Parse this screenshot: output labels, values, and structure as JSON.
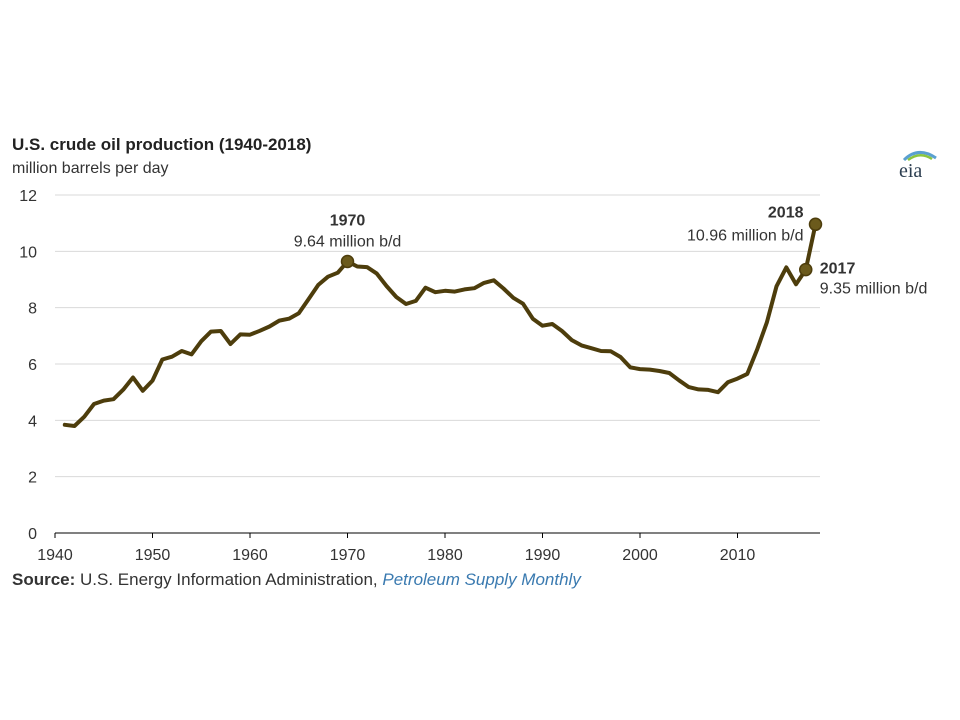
{
  "colors": {
    "line": "#4d3d0c",
    "marker": "#6b5a1c",
    "grid": "#d9d9d9",
    "publication_link": "#3a7ab0"
  },
  "logo": {
    "text": "eia",
    "icon": "eia-logo"
  },
  "source": {
    "label": "Source:",
    "text": " U.S. Energy Information Administration, ",
    "publication": "Petroleum Supply Monthly"
  },
  "chart_data": {
    "type": "line",
    "title": "U.S. crude oil production (1940-2018)",
    "subtitle": "million barrels per day",
    "xlabel": "",
    "ylabel": "",
    "xlim": [
      1940,
      2018
    ],
    "ylim": [
      0,
      12
    ],
    "x_ticks": [
      1940,
      1950,
      1960,
      1970,
      1980,
      1990,
      2000,
      2010
    ],
    "y_ticks": [
      0,
      2,
      4,
      6,
      8,
      10,
      12
    ],
    "grid": "horizontal",
    "series": [
      {
        "x": [
          1941,
          1942,
          1943,
          1944,
          1945,
          1946,
          1947,
          1948,
          1949,
          1950,
          1951,
          1952,
          1953,
          1954,
          1955,
          1956,
          1957,
          1958,
          1959,
          1960,
          1961,
          1962,
          1963,
          1964,
          1965,
          1966,
          1967,
          1968,
          1969,
          1970,
          1971,
          1972,
          1973,
          1974,
          1975,
          1976,
          1977,
          1978,
          1979,
          1980,
          1981,
          1982,
          1983,
          1984,
          1985,
          1986,
          1987,
          1988,
          1989,
          1990,
          1991,
          1992,
          1993,
          1994,
          1995,
          1996,
          1997,
          1998,
          1999,
          2000,
          2001,
          2002,
          2003,
          2004,
          2005,
          2006,
          2007,
          2008,
          2009,
          2010,
          2011,
          2012,
          2013,
          2014,
          2015,
          2016,
          2017,
          2018
        ],
        "values": [
          3.84,
          3.8,
          4.13,
          4.58,
          4.7,
          4.75,
          5.09,
          5.52,
          5.05,
          5.41,
          6.16,
          6.26,
          6.46,
          6.34,
          6.81,
          7.15,
          7.17,
          6.71,
          7.05,
          7.04,
          7.18,
          7.33,
          7.54,
          7.61,
          7.8,
          8.3,
          8.81,
          9.1,
          9.24,
          9.64,
          9.46,
          9.44,
          9.21,
          8.77,
          8.38,
          8.13,
          8.24,
          8.71,
          8.55,
          8.6,
          8.57,
          8.65,
          8.69,
          8.88,
          8.97,
          8.68,
          8.35,
          8.14,
          7.61,
          7.36,
          7.42,
          7.17,
          6.85,
          6.66,
          6.56,
          6.46,
          6.45,
          6.25,
          5.88,
          5.82,
          5.8,
          5.75,
          5.68,
          5.42,
          5.18,
          5.1,
          5.08,
          5.0,
          5.35,
          5.48,
          5.65,
          6.5,
          7.47,
          8.76,
          9.43,
          8.83,
          9.35,
          10.96
        ]
      }
    ],
    "annotations": [
      {
        "year": "1970",
        "value_label": "9.64 million b/d",
        "x": 1970,
        "y": 9.64
      },
      {
        "year": "2018",
        "value_label": "10.96 million b/d",
        "x": 2018,
        "y": 10.96
      },
      {
        "year": "2017",
        "value_label": "9.35 million b/d",
        "x": 2017,
        "y": 9.35
      }
    ]
  }
}
